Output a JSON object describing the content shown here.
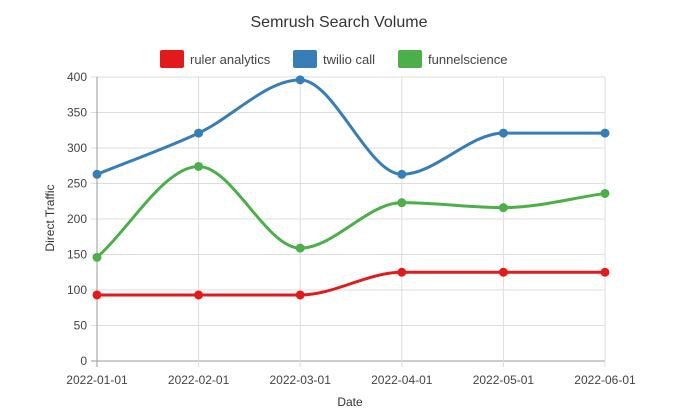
{
  "chart_data": {
    "type": "line",
    "title": "Semrush Search Volume",
    "xlabel": "Date",
    "ylabel": "Direct Traffic",
    "x": [
      "2022-01-01",
      "2022-02-01",
      "2022-03-01",
      "2022-04-01",
      "2022-05-01",
      "2022-06-01"
    ],
    "y_ticks": [
      0,
      50,
      100,
      150,
      200,
      250,
      300,
      350,
      400
    ],
    "ylim": [
      0,
      400
    ],
    "grid": true,
    "legend_position": "top",
    "smooth": true,
    "series": [
      {
        "name": "ruler analytics",
        "color": "#e31a1c",
        "values": [
          93,
          93,
          93,
          125,
          125,
          125
        ]
      },
      {
        "name": "twilio call",
        "color": "#377eb8",
        "values": [
          263,
          321,
          396,
          263,
          321,
          321
        ]
      },
      {
        "name": "funnelscience",
        "color": "#4daf4a",
        "values": [
          146,
          274,
          159,
          223,
          216,
          236
        ]
      }
    ]
  }
}
